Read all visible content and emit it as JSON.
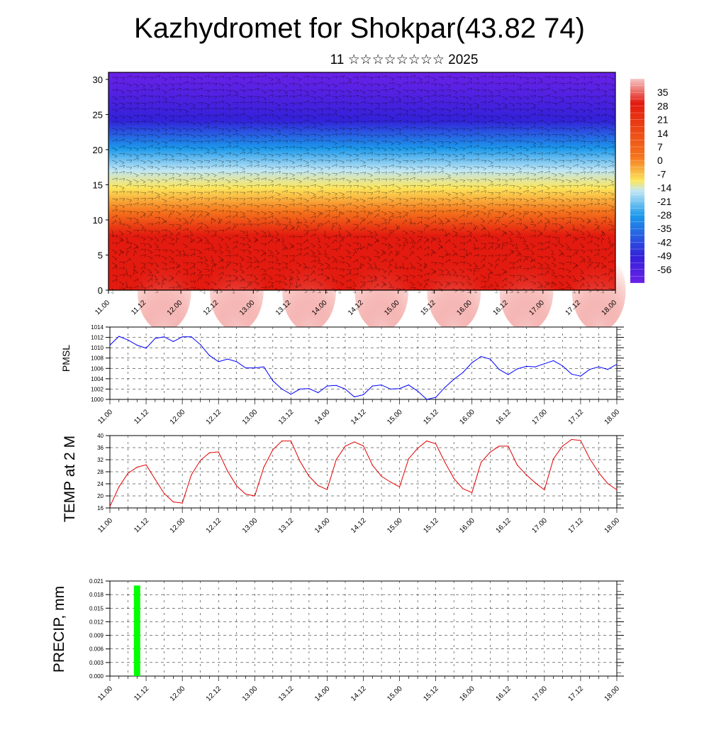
{
  "title": "Kazhydromet for Shokpar(43.82 74)",
  "subtitle": "11 ☆☆☆☆☆☆☆☆ 2025",
  "time_ticks": [
    "11.00",
    "11.12",
    "12.00",
    "12.12",
    "13.00",
    "13.12",
    "14.00",
    "14.12",
    "15.00",
    "15.12",
    "16.00",
    "16.12",
    "17.00",
    "17.12",
    "18.00"
  ],
  "chart_data": [
    {
      "type": "heatmap",
      "ylim": [
        0,
        31
      ],
      "yticks": [
        "0",
        "5",
        "10",
        "15",
        "20",
        "25",
        "30"
      ],
      "x": [
        "11.00",
        "11.12",
        "12.00",
        "12.12",
        "13.00",
        "13.12",
        "14.00",
        "14.12",
        "15.00",
        "15.12",
        "16.00",
        "16.12",
        "17.00",
        "17.12",
        "18.00"
      ],
      "colorbar": {
        "labels": [
          "35",
          "28",
          "21",
          "14",
          "7",
          "0",
          "-7",
          "-14",
          "-21",
          "-28",
          "-35",
          "-42",
          "-49",
          "-56"
        ],
        "range": [
          -63,
          42
        ]
      },
      "wind_barbs": true,
      "colors": {
        "warm_peak": "#f5c7c7",
        "warm": "#e31a0f",
        "orange": "#f5731c",
        "yellow": "#fce65c",
        "light_blue": "#bfe6f5",
        "blue": "#1c99eb",
        "dark_blue": "#3321d9",
        "purple": "#6b21e8"
      }
    },
    {
      "type": "line",
      "ylabel": "PMSL",
      "ylim": [
        1000,
        1014
      ],
      "yticks": [
        "1000",
        "1002",
        "1004",
        "1006",
        "1008",
        "1010",
        "1012",
        "1014"
      ],
      "x": [
        "11.00",
        "11.03",
        "11.06",
        "11.09",
        "11.12",
        "11.15",
        "11.18",
        "11.21",
        "12.00",
        "12.03",
        "12.06",
        "12.09",
        "12.12",
        "12.15",
        "12.18",
        "12.21",
        "13.00",
        "13.03",
        "13.06",
        "13.09",
        "13.12",
        "13.15",
        "13.18",
        "13.21",
        "14.00",
        "14.03",
        "14.06",
        "14.09",
        "14.12",
        "14.15",
        "14.18",
        "14.21",
        "15.00",
        "15.03",
        "15.06",
        "15.09",
        "15.12",
        "15.15",
        "15.18",
        "15.21",
        "16.00",
        "16.03",
        "16.06",
        "16.09",
        "16.12",
        "16.15",
        "16.18",
        "16.21",
        "17.00",
        "17.03",
        "17.06",
        "17.09",
        "17.12",
        "17.15",
        "17.18",
        "17.21",
        "18.00"
      ],
      "series": [
        {
          "values": [
            1010.5,
            1012.2,
            1011.5,
            1010.5,
            1009.9,
            1011.8,
            1012.1,
            1011.2,
            1012.1,
            1012.1,
            1010.6,
            1008.5,
            1007.3,
            1007.8,
            1007.3,
            1006.1,
            1006.1,
            1006.3,
            1003.6,
            1002.0,
            1001.0,
            1002.0,
            1002.1,
            1001.3,
            1002.6,
            1002.7,
            1002.0,
            1000.5,
            1000.9,
            1002.6,
            1002.8,
            1002.0,
            1002.1,
            1002.8,
            1001.6,
            1000.0,
            1000.4,
            1002.3,
            1003.9,
            1005.2,
            1007.1,
            1008.3,
            1007.8,
            1005.8,
            1004.8,
            1005.9,
            1006.4,
            1006.3,
            1006.9,
            1007.5,
            1006.5,
            1004.9,
            1004.5,
            1005.8,
            1006.3,
            1005.8,
            1006.8
          ],
          "color": "#0000ff"
        }
      ]
    },
    {
      "type": "line",
      "ylabel": "TEMP at 2 M",
      "ylim": [
        16,
        40
      ],
      "yticks": [
        "16",
        "20",
        "24",
        "28",
        "32",
        "36",
        "40"
      ],
      "x": [
        "11.00",
        "11.03",
        "11.06",
        "11.09",
        "11.12",
        "11.15",
        "11.18",
        "11.21",
        "12.00",
        "12.03",
        "12.06",
        "12.09",
        "12.12",
        "12.15",
        "12.18",
        "12.21",
        "13.00",
        "13.03",
        "13.06",
        "13.09",
        "13.12",
        "13.15",
        "13.18",
        "13.21",
        "14.00",
        "14.03",
        "14.06",
        "14.09",
        "14.12",
        "14.15",
        "14.18",
        "14.21",
        "15.00",
        "15.03",
        "15.06",
        "15.09",
        "15.12",
        "15.15",
        "15.18",
        "15.21",
        "16.00",
        "16.03",
        "16.06",
        "16.09",
        "16.12",
        "16.15",
        "16.18",
        "16.21",
        "17.00",
        "17.03",
        "17.06",
        "17.09",
        "17.12",
        "17.15",
        "17.18",
        "17.21",
        "18.00"
      ],
      "series": [
        {
          "values": [
            16.5,
            23.0,
            27.5,
            29.5,
            30.3,
            25.5,
            20.8,
            18.0,
            17.6,
            27.0,
            31.8,
            34.3,
            34.6,
            28.2,
            23.3,
            20.6,
            20.0,
            29.5,
            35.3,
            38.2,
            38.2,
            31.5,
            26.5,
            23.4,
            22.1,
            32.0,
            36.5,
            37.9,
            36.6,
            30.2,
            26.5,
            24.6,
            23.0,
            32.3,
            35.8,
            38.2,
            37.3,
            31.2,
            25.8,
            22.4,
            21.1,
            31.1,
            34.5,
            36.5,
            36.5,
            30.2,
            27.0,
            24.3,
            22.0,
            32.3,
            36.5,
            38.7,
            38.4,
            32.4,
            27.7,
            24.1,
            22.0
          ],
          "color": "#e00000"
        }
      ]
    },
    {
      "type": "bar",
      "ylabel": "PRECIP, mm",
      "ylim": [
        0,
        0.021
      ],
      "yticks": [
        "0.000",
        "0.003",
        "0.006",
        "0.009",
        "0.012",
        "0.015",
        "0.018",
        "0.021"
      ],
      "x": [
        "11.00",
        "11.03",
        "11.06",
        "11.09",
        "11.12",
        "11.15",
        "11.18",
        "11.21",
        "12.00",
        "12.03",
        "12.06",
        "12.09",
        "12.12",
        "12.15",
        "12.18",
        "12.21",
        "13.00",
        "13.03",
        "13.06",
        "13.09",
        "13.12",
        "13.15",
        "13.18",
        "13.21",
        "14.00",
        "14.03",
        "14.06",
        "14.09",
        "14.12",
        "14.15",
        "14.18",
        "14.21",
        "15.00",
        "15.03",
        "15.06",
        "15.09",
        "15.12",
        "15.15",
        "15.18",
        "15.21",
        "16.00",
        "16.03",
        "16.06",
        "16.09",
        "16.12",
        "16.15",
        "16.18",
        "16.21",
        "17.00",
        "17.03",
        "17.06",
        "17.09",
        "17.12",
        "17.15",
        "17.18",
        "17.21",
        "18.00"
      ],
      "series": [
        {
          "values": [
            0,
            0,
            0,
            0.02,
            0,
            0,
            0,
            0,
            0,
            0,
            0,
            0,
            0,
            0,
            0,
            0,
            0,
            0,
            0,
            0,
            0,
            0,
            0,
            0,
            0,
            0,
            0,
            0,
            0,
            0,
            0,
            0,
            0,
            0,
            0,
            0,
            0,
            0,
            0,
            0,
            0,
            0,
            0,
            0,
            0,
            0,
            0,
            0,
            0,
            0,
            0,
            0,
            0,
            0,
            0,
            0,
            0
          ],
          "color": "#00ff00"
        }
      ]
    }
  ]
}
